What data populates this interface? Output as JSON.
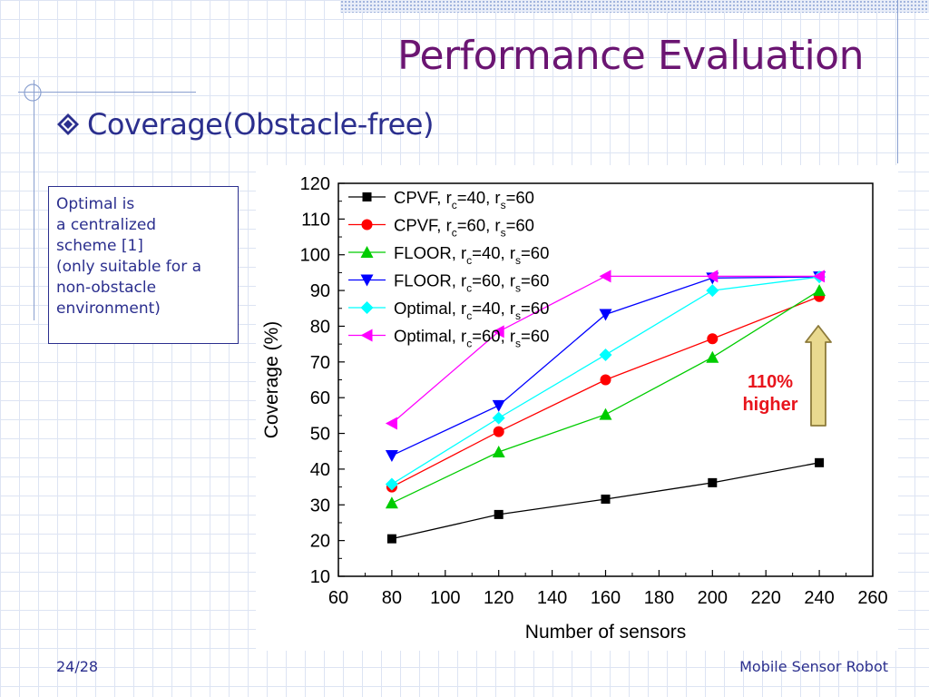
{
  "slide": {
    "title": "Performance Evaluation",
    "bullet": "Coverage(Obstacle-free)",
    "note_lines": [
      "Optimal is",
      "a centralized",
      "scheme [1]",
      "(only suitable for a",
      "non-obstacle",
      "environment)"
    ],
    "page_number": "24/28",
    "footer_title": "Mobile Sensor Robot",
    "highlight_lines": [
      "110%",
      "higher"
    ],
    "colors": {
      "title": "#6b1572",
      "text": "#2b2f8e",
      "highlight": "#e8141c",
      "arrow_fill": "#e9d98f",
      "arrow_stroke": "#8c7a3a"
    }
  },
  "chart_data": {
    "type": "line",
    "title": "",
    "xlabel": "Number of sensors",
    "ylabel": "Coverage (%)",
    "xlim": [
      60,
      260
    ],
    "ylim": [
      10,
      120
    ],
    "x_ticks": [
      60,
      80,
      100,
      120,
      140,
      160,
      180,
      200,
      220,
      240,
      260
    ],
    "y_ticks": [
      10,
      20,
      30,
      40,
      50,
      60,
      70,
      80,
      90,
      100,
      110,
      120
    ],
    "grid": false,
    "legend_position": "top-left",
    "x": [
      80,
      120,
      160,
      200,
      240
    ],
    "series": [
      {
        "name": "CPVF, r_c=40, r_s=60",
        "legend_main": "CPVF",
        "c_value": "40",
        "s_value": "60",
        "marker": "square",
        "color": "#000000",
        "line_color": "#000000",
        "values": [
          20.5,
          27.3,
          31.6,
          36.2,
          41.8
        ]
      },
      {
        "name": "CPVF, r_c=60, r_s=60",
        "legend_main": "CPVF",
        "c_value": "60",
        "s_value": "60",
        "marker": "circle",
        "color": "#ff0000",
        "line_color": "#ff0000",
        "values": [
          35.0,
          50.5,
          65.0,
          76.5,
          88.3
        ]
      },
      {
        "name": "FLOOR, r_c=40, r_s=60",
        "legend_main": "FLOOR",
        "c_value": "40",
        "s_value": "60",
        "marker": "triangle-up",
        "color": "#00cc00",
        "line_color": "#00cc00",
        "values": [
          30.5,
          44.8,
          55.3,
          71.3,
          90.0
        ]
      },
      {
        "name": "FLOOR, r_c=60, r_s=60",
        "legend_main": "FLOOR",
        "c_value": "60",
        "s_value": "60",
        "marker": "triangle-down",
        "color": "#0000ff",
        "line_color": "#0000ff",
        "values": [
          43.8,
          57.8,
          83.3,
          93.5,
          93.8
        ]
      },
      {
        "name": "Optimal, r_c=40, r_s=60",
        "legend_main": "Optimal",
        "c_value": "40",
        "s_value": "60",
        "marker": "diamond",
        "color": "#00ffff",
        "line_color": "#00ffff",
        "values": [
          35.8,
          54.3,
          72.0,
          90.0,
          93.8
        ]
      },
      {
        "name": "Optimal, r_c=60, r_s=60",
        "legend_main": "Optimal",
        "c_value": "60",
        "s_value": "60",
        "marker": "triangle-left",
        "color": "#ff00ff",
        "line_color": "#ff00ff",
        "values": [
          52.8,
          78.5,
          94.0,
          94.0,
          94.0
        ]
      }
    ]
  }
}
